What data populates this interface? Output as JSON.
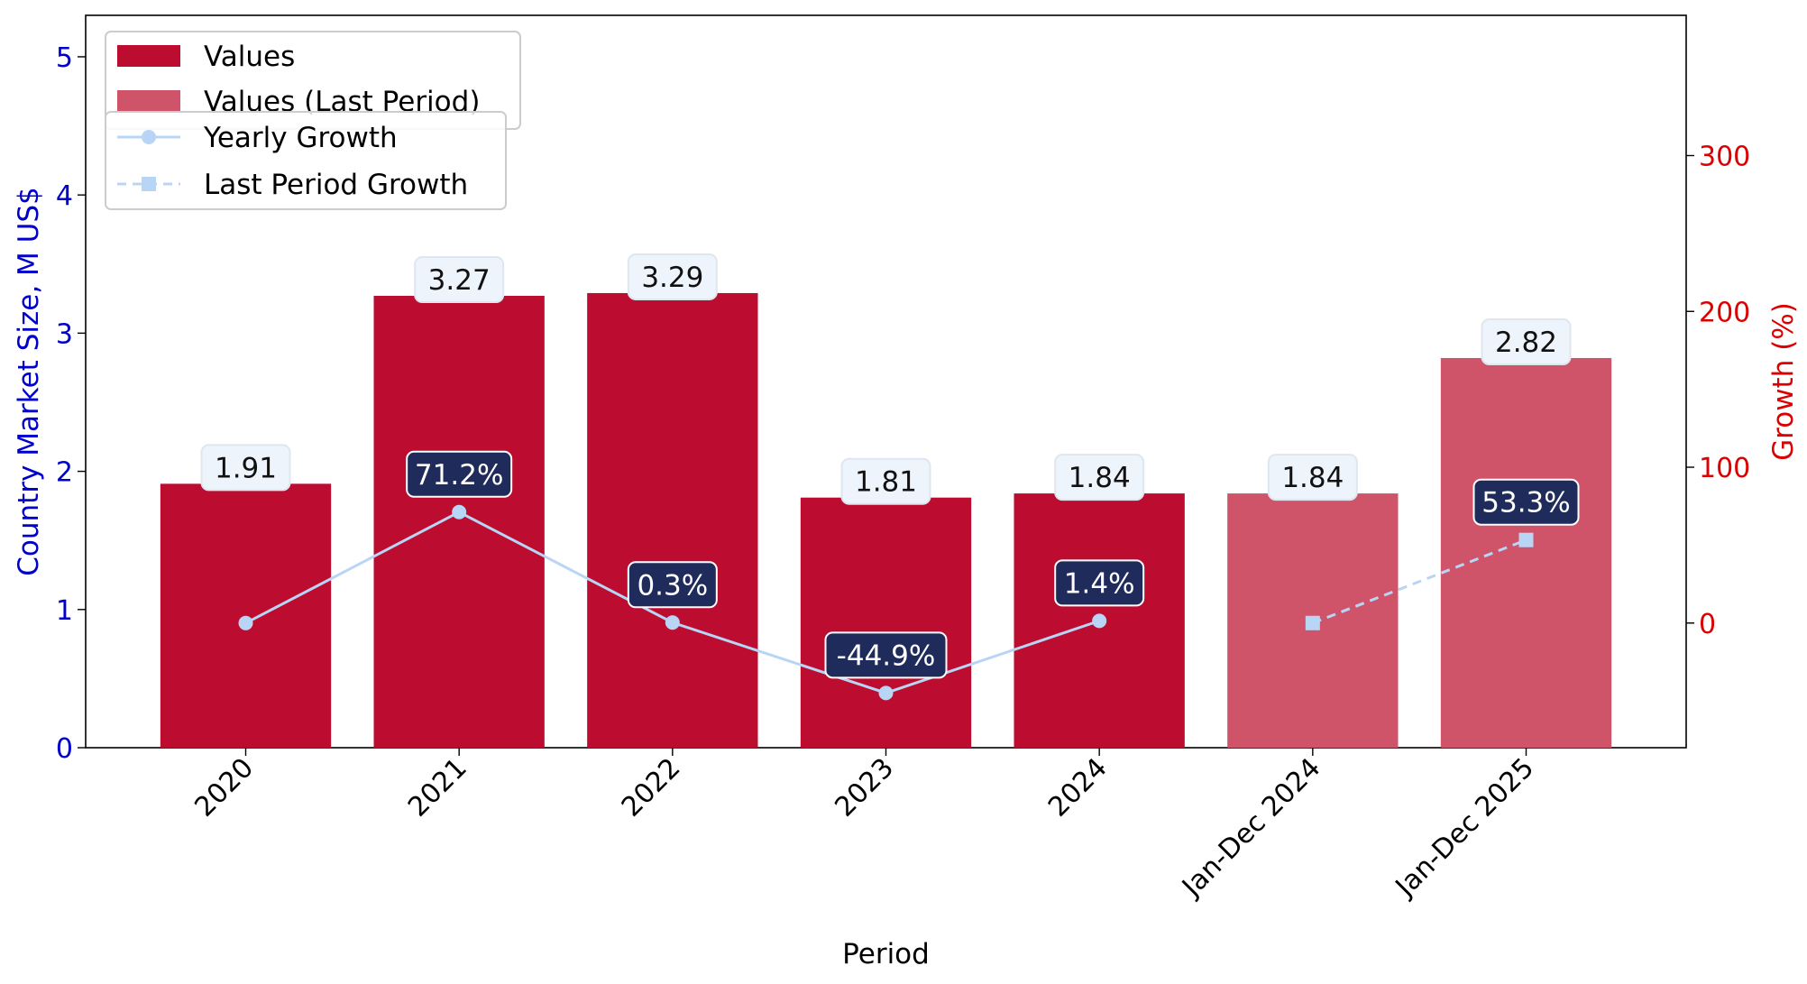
{
  "chart_data": {
    "type": "bar",
    "categories": [
      "2020",
      "2021",
      "2022",
      "2023",
      "2024",
      "Jan-Dec 2024",
      "Jan-Dec 2025"
    ],
    "values": [
      1.91,
      3.27,
      3.29,
      1.81,
      1.84,
      1.84,
      2.82
    ],
    "value_labels": [
      "1.91",
      "3.27",
      "3.29",
      "1.81",
      "1.84",
      "1.84",
      "2.82"
    ],
    "bar_kind": [
      "values",
      "values",
      "values",
      "values",
      "values",
      "last_period",
      "last_period"
    ],
    "xlabel": "Period",
    "ylabel": "Country Market Size, M US$",
    "ylabel_right": "Growth (%)",
    "ylim": [
      0,
      5.3
    ],
    "ylim_right": [
      -80,
      390
    ],
    "yticks": [
      "0",
      "1",
      "2",
      "3",
      "4",
      "5"
    ],
    "yticks_right": [
      "0",
      "100",
      "200",
      "300"
    ],
    "yearly_growth": {
      "name": "Yearly Growth",
      "x_index": [
        0,
        1,
        2,
        3,
        4
      ],
      "values": [
        0,
        71.2,
        0.3,
        -44.9,
        1.4
      ],
      "labels": [
        "",
        "71.2%",
        "0.3%",
        "-44.9%",
        "1.4%"
      ]
    },
    "last_period_growth": {
      "name": "Last Period Growth",
      "x_index": [
        5,
        6
      ],
      "values": [
        0,
        53.3
      ],
      "labels": [
        "",
        "53.3%"
      ]
    },
    "legend": {
      "bars": [
        "Values",
        "Values (Last Period)"
      ],
      "lines": [
        "Yearly Growth",
        "Last Period Growth"
      ],
      "placement": "top-left"
    },
    "colors": {
      "values": "#bc0d31",
      "last_period": "#d05469",
      "growth_line": "#b9d5f5",
      "left_axis": "#0000cc",
      "right_axis": "#dd0000",
      "growth_label_bg": "#1f2c5b",
      "value_label_bg": "#eef4fb"
    },
    "grid": false
  }
}
